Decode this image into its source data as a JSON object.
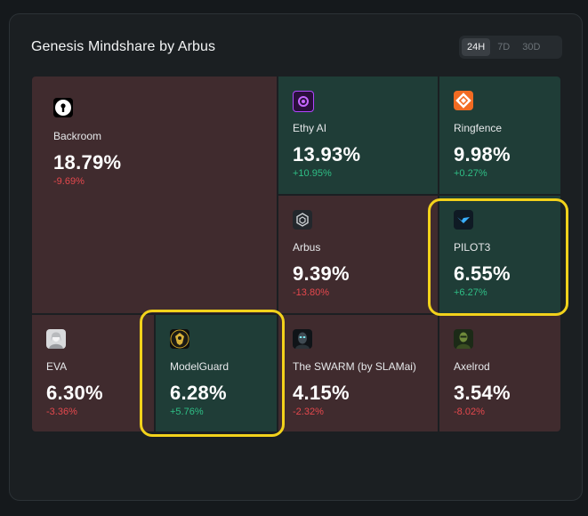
{
  "widget": {
    "title": "Genesis Mindshare by Arbus",
    "ranges": [
      "24H",
      "7D",
      "30D"
    ],
    "selected_range": "24H"
  },
  "tiles": [
    {
      "name": "Backroom",
      "share": "18.79%",
      "change": "-9.69%",
      "trend": "down",
      "icon": "keyhole-icon"
    },
    {
      "name": "Ethy AI",
      "share": "13.93%",
      "change": "+10.95%",
      "trend": "up",
      "icon": "ethy-ai-logo-icon"
    },
    {
      "name": "Ringfence",
      "share": "9.98%",
      "change": "+0.27%",
      "trend": "up",
      "icon": "ringfence-logo-icon"
    },
    {
      "name": "Arbus",
      "share": "9.39%",
      "change": "-13.80%",
      "trend": "down",
      "icon": "arbus-logo-icon"
    },
    {
      "name": "PILOT3",
      "share": "6.55%",
      "change": "+6.27%",
      "trend": "up",
      "icon": "pilot3-logo-icon"
    },
    {
      "name": "EVA",
      "share": "6.30%",
      "change": "-3.36%",
      "trend": "down",
      "icon": "eva-avatar-icon"
    },
    {
      "name": "ModelGuard",
      "share": "6.28%",
      "change": "+5.76%",
      "trend": "up",
      "icon": "modelguard-logo-icon"
    },
    {
      "name": "The SWARM (by SLAMai)",
      "share": "4.15%",
      "change": "-2.32%",
      "trend": "down",
      "icon": "swarm-avatar-icon"
    },
    {
      "name": "Axelrod",
      "share": "3.54%",
      "change": "-8.02%",
      "trend": "down",
      "icon": "axelrod-avatar-icon"
    }
  ],
  "highlighted": [
    "PILOT3",
    "ModelGuard"
  ],
  "colors": {
    "tile_up": "#1f3d37",
    "tile_down": "#402b2e",
    "positive": "#2fbf86",
    "negative": "#e5484d",
    "highlight": "#f2d21b"
  }
}
